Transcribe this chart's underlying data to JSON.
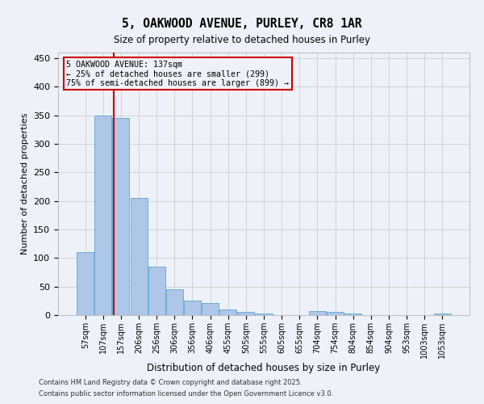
{
  "title_line1": "5, OAKWOOD AVENUE, PURLEY, CR8 1AR",
  "title_line2": "Size of property relative to detached houses in Purley",
  "xlabel": "Distribution of detached houses by size in Purley",
  "ylabel": "Number of detached properties",
  "bar_labels": [
    "57sqm",
    "107sqm",
    "157sqm",
    "206sqm",
    "256sqm",
    "306sqm",
    "356sqm",
    "406sqm",
    "455sqm",
    "505sqm",
    "555sqm",
    "605sqm",
    "655sqm",
    "704sqm",
    "754sqm",
    "804sqm",
    "854sqm",
    "904sqm",
    "953sqm",
    "1003sqm",
    "1053sqm"
  ],
  "bar_values": [
    110,
    350,
    345,
    205,
    85,
    46,
    25,
    21,
    10,
    6,
    3,
    0,
    0,
    7,
    5,
    3,
    0,
    0,
    0,
    0,
    3
  ],
  "bar_color": "#aec6e8",
  "bar_edge_color": "#6baed6",
  "bar_edge_width": 0.7,
  "red_line_color": "#cc0000",
  "annotation_title": "5 OAKWOOD AVENUE: 137sqm",
  "annotation_line2": "← 25% of detached houses are smaller (299)",
  "annotation_line3": "75% of semi-detached houses are larger (899) →",
  "annotation_box_color": "#cc0000",
  "ylim": [
    0,
    460
  ],
  "yticks": [
    0,
    50,
    100,
    150,
    200,
    250,
    300,
    350,
    400,
    450
  ],
  "grid_color": "#cccccc",
  "background_color": "#eef2f8",
  "footer_line1": "Contains HM Land Registry data © Crown copyright and database right 2025.",
  "footer_line2": "Contains public sector information licensed under the Open Government Licence v3.0."
}
